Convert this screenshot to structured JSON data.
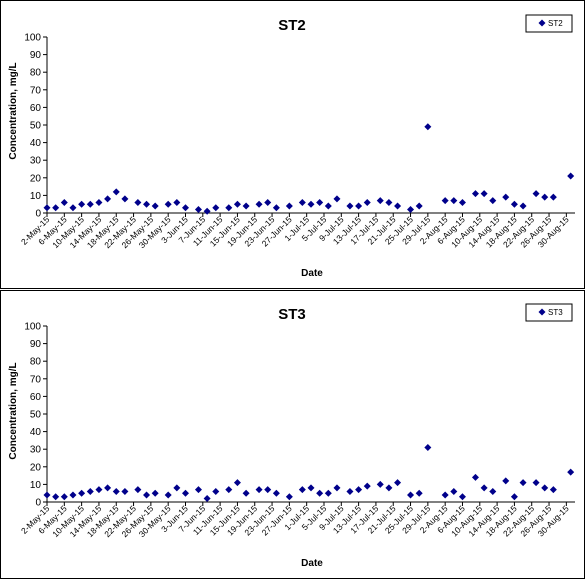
{
  "chart_data": [
    {
      "type": "scatter",
      "title": "ST2",
      "xlabel": "Date",
      "ylabel": "Concentration, mg/L",
      "ylim": [
        0,
        100
      ],
      "ytick_step": 10,
      "grid": false,
      "legend_position": "top-right",
      "x_tick_labels": [
        "2-May-15",
        "6-May-15",
        "10-May-15",
        "14-May-15",
        "18-May-15",
        "22-May-15",
        "26-May-15",
        "30-May-15",
        "3-Jun-15",
        "7-Jun-15",
        "11-Jun-15",
        "15-Jun-15",
        "19-Jun-15",
        "23-Jun-15",
        "27-Jun-15",
        "1-Jul-15",
        "5-Jul-15",
        "9-Jul-15",
        "13-Jul-15",
        "17-Jul-15",
        "21-Jul-15",
        "25-Jul-15",
        "29-Jul-15",
        "2-Aug-15",
        "6-Aug-15",
        "10-Aug-15",
        "14-Aug-15",
        "18-Aug-15",
        "22-Aug-15",
        "26-Aug-15",
        "30-Aug-15"
      ],
      "series": [
        {
          "name": "ST2",
          "color": "#00008B",
          "points": [
            [
              "2-May-15",
              3
            ],
            [
              "4-May-15",
              3
            ],
            [
              "6-May-15",
              6
            ],
            [
              "8-May-15",
              3
            ],
            [
              "10-May-15",
              5
            ],
            [
              "12-May-15",
              5
            ],
            [
              "14-May-15",
              6
            ],
            [
              "16-May-15",
              8
            ],
            [
              "18-May-15",
              12
            ],
            [
              "20-May-15",
              8
            ],
            [
              "23-May-15",
              6
            ],
            [
              "25-May-15",
              5
            ],
            [
              "27-May-15",
              4
            ],
            [
              "30-May-15",
              5
            ],
            [
              "1-Jun-15",
              6
            ],
            [
              "3-Jun-15",
              3
            ],
            [
              "6-Jun-15",
              2
            ],
            [
              "8-Jun-15",
              1
            ],
            [
              "10-Jun-15",
              3
            ],
            [
              "13-Jun-15",
              3
            ],
            [
              "15-Jun-15",
              5
            ],
            [
              "17-Jun-15",
              4
            ],
            [
              "20-Jun-15",
              5
            ],
            [
              "22-Jun-15",
              6
            ],
            [
              "24-Jun-15",
              3
            ],
            [
              "27-Jun-15",
              4
            ],
            [
              "30-Jun-15",
              6
            ],
            [
              "2-Jul-15",
              5
            ],
            [
              "4-Jul-15",
              6
            ],
            [
              "6-Jul-15",
              4
            ],
            [
              "8-Jul-15",
              8
            ],
            [
              "11-Jul-15",
              4
            ],
            [
              "13-Jul-15",
              4
            ],
            [
              "15-Jul-15",
              6
            ],
            [
              "18-Jul-15",
              7
            ],
            [
              "20-Jul-15",
              6
            ],
            [
              "22-Jul-15",
              4
            ],
            [
              "25-Jul-15",
              2
            ],
            [
              "27-Jul-15",
              4
            ],
            [
              "29-Jul-15",
              49
            ],
            [
              "2-Aug-15",
              7
            ],
            [
              "4-Aug-15",
              7
            ],
            [
              "6-Aug-15",
              6
            ],
            [
              "9-Aug-15",
              11
            ],
            [
              "11-Aug-15",
              11
            ],
            [
              "13-Aug-15",
              7
            ],
            [
              "16-Aug-15",
              9
            ],
            [
              "18-Aug-15",
              5
            ],
            [
              "20-Aug-15",
              4
            ],
            [
              "23-Aug-15",
              11
            ],
            [
              "25-Aug-15",
              9
            ],
            [
              "27-Aug-15",
              9
            ],
            [
              "31-Aug-15",
              21
            ]
          ]
        }
      ]
    },
    {
      "type": "scatter",
      "title": "ST3",
      "xlabel": "Date",
      "ylabel": "Concentration, mg/L",
      "ylim": [
        0,
        100
      ],
      "ytick_step": 10,
      "grid": false,
      "legend_position": "top-right",
      "x_tick_labels": [
        "2-May-15",
        "6-May-15",
        "10-May-15",
        "14-May-15",
        "18-May-15",
        "22-May-15",
        "26-May-15",
        "30-May-15",
        "3-Jun-15",
        "7-Jun-15",
        "11-Jun-15",
        "15-Jun-15",
        "19-Jun-15",
        "23-Jun-15",
        "27-Jun-15",
        "1-Jul-15",
        "5-Jul-15",
        "9-Jul-15",
        "13-Jul-15",
        "17-Jul-15",
        "21-Jul-15",
        "25-Jul-15",
        "29-Jul-15",
        "2-Aug-15",
        "6-Aug-15",
        "10-Aug-15",
        "14-Aug-15",
        "18-Aug-15",
        "22-Aug-15",
        "26-Aug-15",
        "30-Aug-15"
      ],
      "series": [
        {
          "name": "ST3",
          "color": "#00008B",
          "points": [
            [
              "2-May-15",
              4
            ],
            [
              "4-May-15",
              3
            ],
            [
              "6-May-15",
              3
            ],
            [
              "8-May-15",
              4
            ],
            [
              "10-May-15",
              5
            ],
            [
              "12-May-15",
              6
            ],
            [
              "14-May-15",
              7
            ],
            [
              "16-May-15",
              8
            ],
            [
              "18-May-15",
              6
            ],
            [
              "20-May-15",
              6
            ],
            [
              "23-May-15",
              7
            ],
            [
              "25-May-15",
              4
            ],
            [
              "27-May-15",
              5
            ],
            [
              "30-May-15",
              4
            ],
            [
              "1-Jun-15",
              8
            ],
            [
              "3-Jun-15",
              5
            ],
            [
              "6-Jun-15",
              7
            ],
            [
              "8-Jun-15",
              2
            ],
            [
              "10-Jun-15",
              6
            ],
            [
              "13-Jun-15",
              7
            ],
            [
              "15-Jun-15",
              11
            ],
            [
              "17-Jun-15",
              5
            ],
            [
              "20-Jun-15",
              7
            ],
            [
              "22-Jun-15",
              7
            ],
            [
              "24-Jun-15",
              5
            ],
            [
              "27-Jun-15",
              3
            ],
            [
              "30-Jun-15",
              7
            ],
            [
              "2-Jul-15",
              8
            ],
            [
              "4-Jul-15",
              5
            ],
            [
              "6-Jul-15",
              5
            ],
            [
              "8-Jul-15",
              8
            ],
            [
              "11-Jul-15",
              6
            ],
            [
              "13-Jul-15",
              7
            ],
            [
              "15-Jul-15",
              9
            ],
            [
              "18-Jul-15",
              10
            ],
            [
              "20-Jul-15",
              8
            ],
            [
              "22-Jul-15",
              11
            ],
            [
              "25-Jul-15",
              4
            ],
            [
              "27-Jul-15",
              5
            ],
            [
              "29-Jul-15",
              31
            ],
            [
              "2-Aug-15",
              4
            ],
            [
              "4-Aug-15",
              6
            ],
            [
              "6-Aug-15",
              3
            ],
            [
              "9-Aug-15",
              14
            ],
            [
              "11-Aug-15",
              8
            ],
            [
              "13-Aug-15",
              6
            ],
            [
              "16-Aug-15",
              12
            ],
            [
              "18-Aug-15",
              3
            ],
            [
              "20-Aug-15",
              11
            ],
            [
              "23-Aug-15",
              11
            ],
            [
              "25-Aug-15",
              8
            ],
            [
              "27-Aug-15",
              7
            ],
            [
              "31-Aug-15",
              17
            ]
          ]
        }
      ]
    }
  ]
}
